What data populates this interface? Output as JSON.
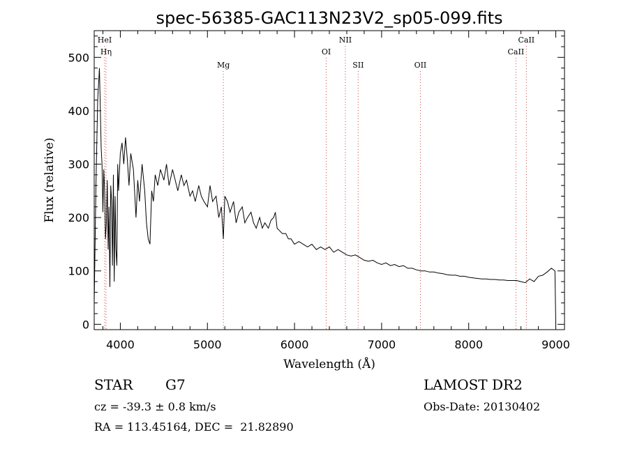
{
  "chart_data": {
    "type": "line",
    "title": "spec-56385-GAC113N23V2_sp05-099.fits",
    "xlabel": "Wavelength (Å)",
    "ylabel": "Flux (relative)",
    "xlim": [
      3700,
      9100
    ],
    "ylim": [
      -10,
      550
    ],
    "x_ticks": [
      4000,
      5000,
      6000,
      7000,
      8000,
      9000
    ],
    "y_ticks": [
      0,
      100,
      200,
      300,
      400,
      500
    ],
    "grid": false,
    "series": [
      {
        "x": [
          3700,
          3720,
          3740,
          3760,
          3780,
          3790,
          3800,
          3810,
          3820,
          3830,
          3840,
          3850,
          3860,
          3870,
          3880,
          3890,
          3900,
          3910,
          3920,
          3930,
          3940,
          3950,
          3960,
          3970,
          3980,
          4000,
          4020,
          4040,
          4060,
          4080,
          4100,
          4120,
          4150,
          4180,
          4200,
          4220,
          4250,
          4280,
          4300,
          4320,
          4340,
          4360,
          4380,
          4400,
          4430,
          4460,
          4500,
          4530,
          4560,
          4600,
          4630,
          4660,
          4700,
          4730,
          4760,
          4800,
          4830,
          4860,
          4900,
          4930,
          4960,
          5000,
          5030,
          5060,
          5100,
          5130,
          5160,
          5183,
          5200,
          5230,
          5260,
          5300,
          5330,
          5360,
          5400,
          5430,
          5460,
          5500,
          5530,
          5560,
          5600,
          5630,
          5660,
          5700,
          5730,
          5760,
          5780,
          5800,
          5830,
          5860,
          5900,
          5930,
          5960,
          6000,
          6050,
          6100,
          6150,
          6200,
          6250,
          6300,
          6350,
          6400,
          6450,
          6500,
          6550,
          6600,
          6650,
          6700,
          6750,
          6800,
          6850,
          6900,
          6950,
          7000,
          7050,
          7100,
          7150,
          7200,
          7250,
          7300,
          7350,
          7400,
          7450,
          7500,
          7550,
          7600,
          7650,
          7700,
          7750,
          7800,
          7850,
          7900,
          7950,
          8000,
          8050,
          8100,
          8150,
          8200,
          8250,
          8300,
          8350,
          8400,
          8450,
          8500,
          8550,
          8600,
          8650,
          8700,
          8750,
          8800,
          8850,
          8900,
          8950,
          8990,
          9000
        ],
        "y": [
          40,
          260,
          420,
          480,
          330,
          300,
          210,
          290,
          250,
          160,
          190,
          270,
          140,
          220,
          70,
          260,
          230,
          110,
          280,
          80,
          240,
          140,
          110,
          300,
          250,
          320,
          340,
          300,
          350,
          310,
          260,
          320,
          290,
          200,
          270,
          230,
          300,
          250,
          190,
          160,
          150,
          250,
          230,
          280,
          260,
          290,
          270,
          300,
          260,
          290,
          270,
          250,
          280,
          260,
          270,
          240,
          250,
          230,
          260,
          240,
          230,
          220,
          260,
          230,
          240,
          200,
          220,
          160,
          240,
          230,
          210,
          230,
          190,
          210,
          220,
          190,
          200,
          210,
          190,
          180,
          200,
          180,
          190,
          180,
          195,
          200,
          210,
          180,
          175,
          170,
          170,
          160,
          160,
          150,
          155,
          150,
          145,
          150,
          140,
          145,
          140,
          145,
          135,
          140,
          135,
          130,
          128,
          130,
          125,
          120,
          118,
          120,
          115,
          112,
          115,
          110,
          112,
          108,
          110,
          105,
          105,
          102,
          100,
          100,
          98,
          98,
          96,
          95,
          93,
          92,
          92,
          90,
          90,
          88,
          87,
          86,
          85,
          85,
          84,
          84,
          83,
          83,
          82,
          82,
          82,
          80,
          78,
          85,
          80,
          90,
          92,
          98,
          105,
          100,
          2
        ]
      }
    ],
    "spectral_lines": [
      {
        "label": "HeI",
        "wavelength": 3820,
        "row": 1
      },
      {
        "label": "Hη",
        "wavelength": 3836,
        "row": 2
      },
      {
        "label": "Mg",
        "wavelength": 5183,
        "row": 3
      },
      {
        "label": "OI",
        "wavelength": 6364,
        "row": 2
      },
      {
        "label": "NII",
        "wavelength": 6584,
        "row": 1
      },
      {
        "label": "SII",
        "wavelength": 6731,
        "row": 3
      },
      {
        "label": "OII",
        "wavelength": 7445,
        "row": 3
      },
      {
        "label": "CaII",
        "wavelength": 8542,
        "row": 2
      },
      {
        "label": "CaII",
        "wavelength": 8662,
        "row": 1
      }
    ]
  },
  "footer": {
    "object_type": "STAR",
    "subclass": "G7",
    "survey": "LAMOST DR2",
    "cz": "cz = -39.3 ± 0.8 km/s",
    "obs_date": "Obs-Date: 20130402",
    "coords": "RA = 113.45164, DEC =  21.82890"
  }
}
